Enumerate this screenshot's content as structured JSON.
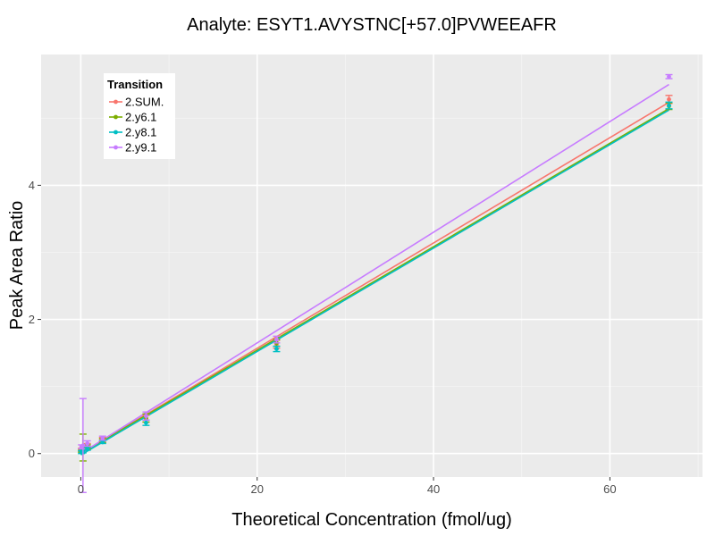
{
  "chart_data": {
    "type": "scatter",
    "title": "Analyte: ESYT1.AVYSTNC[+57.0]PVWEEAFR",
    "xlabel": "Theoretical Concentration (fmol/ug)",
    "ylabel": "Peak Area Ratio",
    "xlim": [
      -4.5,
      70.5
    ],
    "ylim": [
      -0.35,
      5.95
    ],
    "x_ticks": [
      0,
      20,
      40,
      60
    ],
    "y_ticks": [
      0,
      2,
      4
    ],
    "grid": true,
    "legend": {
      "title": "Transition",
      "position": "top-left"
    },
    "series": [
      {
        "name": "2.SUM.",
        "color": "#F8766D",
        "x": [
          0.082,
          0.25,
          0.74,
          2.47,
          7.4,
          22.2,
          66.7
        ],
        "y": [
          0.06,
          0.08,
          0.12,
          0.21,
          0.52,
          1.63,
          5.28
        ],
        "err": [
          0.02,
          0.03,
          0.03,
          0.03,
          0.05,
          0.06,
          0.06
        ],
        "fit": {
          "slope": 0.0785,
          "intercept": 0.0
        }
      },
      {
        "name": "2.y6.1",
        "color": "#7CAE00",
        "x": [
          0.082,
          0.25,
          0.74,
          2.47,
          7.4,
          22.2,
          66.7
        ],
        "y": [
          0.04,
          0.09,
          0.1,
          0.19,
          0.53,
          1.65,
          5.18
        ],
        "err": [
          0.02,
          0.2,
          0.03,
          0.03,
          0.06,
          0.05,
          0.05
        ],
        "fit": {
          "slope": 0.0771,
          "intercept": 0.0
        }
      },
      {
        "name": "2.y8.1",
        "color": "#00BFC4",
        "x": [
          0.082,
          0.25,
          0.74,
          2.47,
          7.4,
          22.2,
          66.7
        ],
        "y": [
          0.02,
          0.03,
          0.07,
          0.17,
          0.46,
          1.56,
          5.19
        ],
        "err": [
          0.02,
          0.02,
          0.02,
          0.02,
          0.04,
          0.04,
          0.05
        ],
        "fit": {
          "slope": 0.0771,
          "intercept": -0.02
        }
      },
      {
        "name": "2.y9.1",
        "color": "#C77CFF",
        "x": [
          0.082,
          0.25,
          0.74,
          2.47,
          7.4,
          22.2,
          66.7
        ],
        "y": [
          0.1,
          0.12,
          0.15,
          0.23,
          0.56,
          1.7,
          5.62
        ],
        "err": [
          0.03,
          0.7,
          0.04,
          0.03,
          0.06,
          0.05,
          0.03
        ],
        "fit": {
          "slope": 0.0825,
          "intercept": 0.0
        }
      }
    ]
  }
}
